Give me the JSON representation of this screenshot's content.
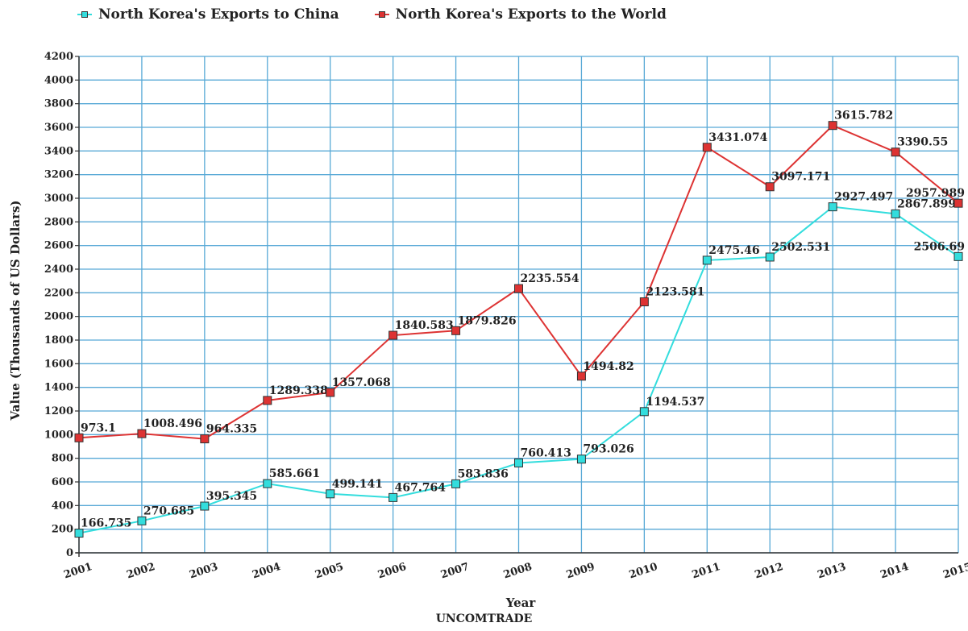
{
  "chart_data": {
    "type": "line",
    "title": "",
    "xlabel": "Year",
    "ylabel": "Value (Thousands of US Dollars)",
    "source": "UNCOMTRADE",
    "legend_position": "top-left",
    "grid": true,
    "ylim": [
      0,
      4200
    ],
    "y_ticks": [
      0,
      200,
      400,
      600,
      800,
      1000,
      1200,
      1400,
      1600,
      1800,
      2000,
      2200,
      2400,
      2600,
      2800,
      3000,
      3200,
      3400,
      3600,
      3800,
      4000,
      4200
    ],
    "categories": [
      "2001",
      "2002",
      "2003",
      "2004",
      "2005",
      "2006",
      "2007",
      "2008",
      "2009",
      "2010",
      "2011",
      "2012",
      "2013",
      "2014",
      "2015"
    ],
    "series": [
      {
        "name": "North Korea's Exports to China",
        "color": "#33dddd",
        "values": [
          166.735,
          270.685,
          395.345,
          585.661,
          499.141,
          467.764,
          583.836,
          760.413,
          793.026,
          1194.537,
          2475.46,
          2502.531,
          2927.497,
          2867.899,
          2506.69
        ],
        "labels": [
          "166.735",
          "270.685",
          "395.345",
          "585.661",
          "499.141",
          "467.764",
          "583.836",
          "760.413",
          "793.026",
          "1194.537",
          "2475.46",
          "2502.531",
          "2927.497",
          "2867.899",
          "2506.69"
        ]
      },
      {
        "name": "North Korea's Exports to the World",
        "color": "#dd3333",
        "values": [
          973.1,
          1008.496,
          964.335,
          1289.338,
          1357.068,
          1840.583,
          1879.826,
          2235.554,
          1494.82,
          2123.581,
          3431.074,
          3097.171,
          3615.782,
          3390.55,
          2957.989
        ],
        "labels": [
          "973.1",
          "1008.496",
          "964.335",
          "1289.338",
          "1357.068",
          "1840.583",
          "1879.826",
          "2235.554",
          "1494.82",
          "2123.581",
          "3431.074",
          "3097.171",
          "3615.782",
          "3390.55",
          "2957.989"
        ]
      }
    ]
  }
}
